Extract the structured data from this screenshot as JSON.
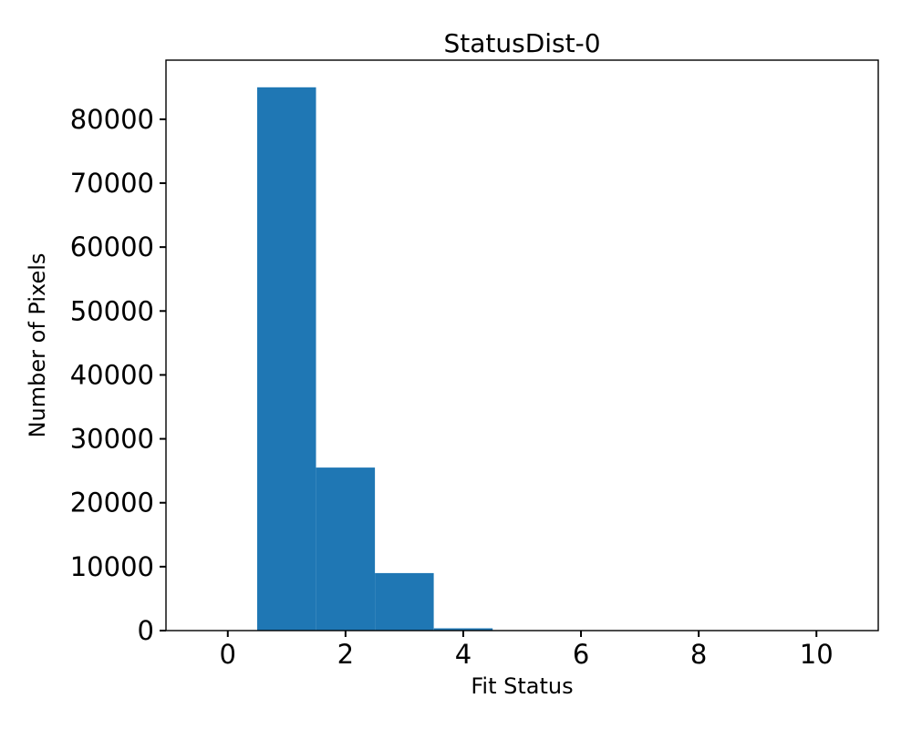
{
  "figure": {
    "background": "#ffffff",
    "axis_color": "#000000"
  },
  "chart_data": {
    "type": "bar",
    "subtype": "histogram",
    "title": "StatusDist-0",
    "xlabel": "Fit Status",
    "ylabel": "Number of Pixels",
    "bar_color": "#1f77b4",
    "grid": false,
    "legend": null,
    "bin_edges": [
      -0.5,
      0.5,
      1.5,
      2.5,
      3.5,
      4.5,
      5.5,
      6.5,
      7.5,
      8.5,
      9.5,
      10.5
    ],
    "counts": [
      0,
      85000,
      25500,
      9000,
      350,
      0,
      0,
      0,
      0,
      0,
      0
    ],
    "xlim": [
      -1.05,
      11.05
    ],
    "ylim": [
      0,
      89250
    ],
    "xticks": [
      0,
      2,
      4,
      6,
      8,
      10
    ],
    "yticks": [
      0,
      10000,
      20000,
      30000,
      40000,
      50000,
      60000,
      70000,
      80000
    ]
  }
}
